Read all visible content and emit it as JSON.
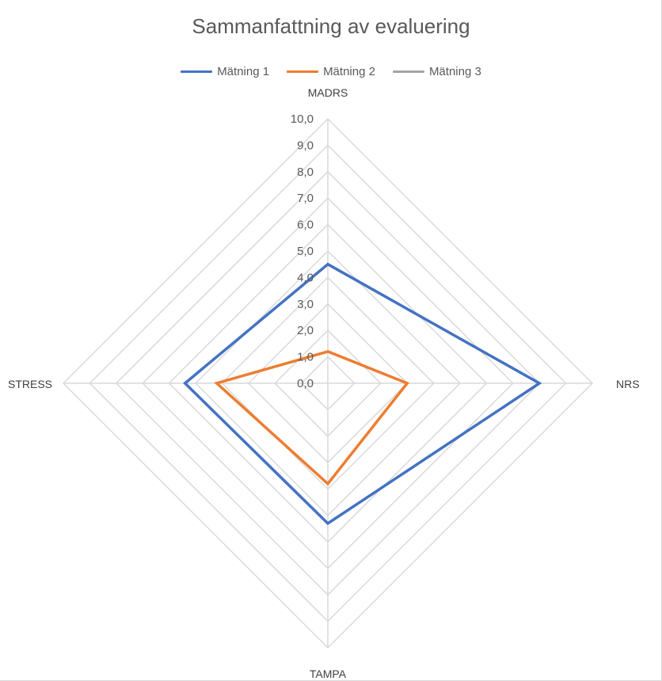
{
  "chart_data": {
    "type": "radar",
    "title": "Sammanfattning av evaluering",
    "axes": [
      "MADRS",
      "NRS",
      "TAMPA",
      "STRESS"
    ],
    "rlim": [
      0,
      10
    ],
    "ticks": [
      "0,0",
      "1,0",
      "2,0",
      "3,0",
      "4,0",
      "5,0",
      "6,0",
      "7,0",
      "8,0",
      "9,0",
      "10,0"
    ],
    "grid": true,
    "legend_position": "top",
    "series": [
      {
        "name": "Mätning 1",
        "color": "#4472c4",
        "values": [
          4.5,
          8.0,
          5.3,
          5.4
        ]
      },
      {
        "name": "Mätning 2",
        "color": "#ed7d31",
        "values": [
          1.2,
          3.0,
          3.8,
          4.2
        ]
      },
      {
        "name": "Mätning 3",
        "color": "#a5a5a5",
        "values": []
      }
    ]
  }
}
